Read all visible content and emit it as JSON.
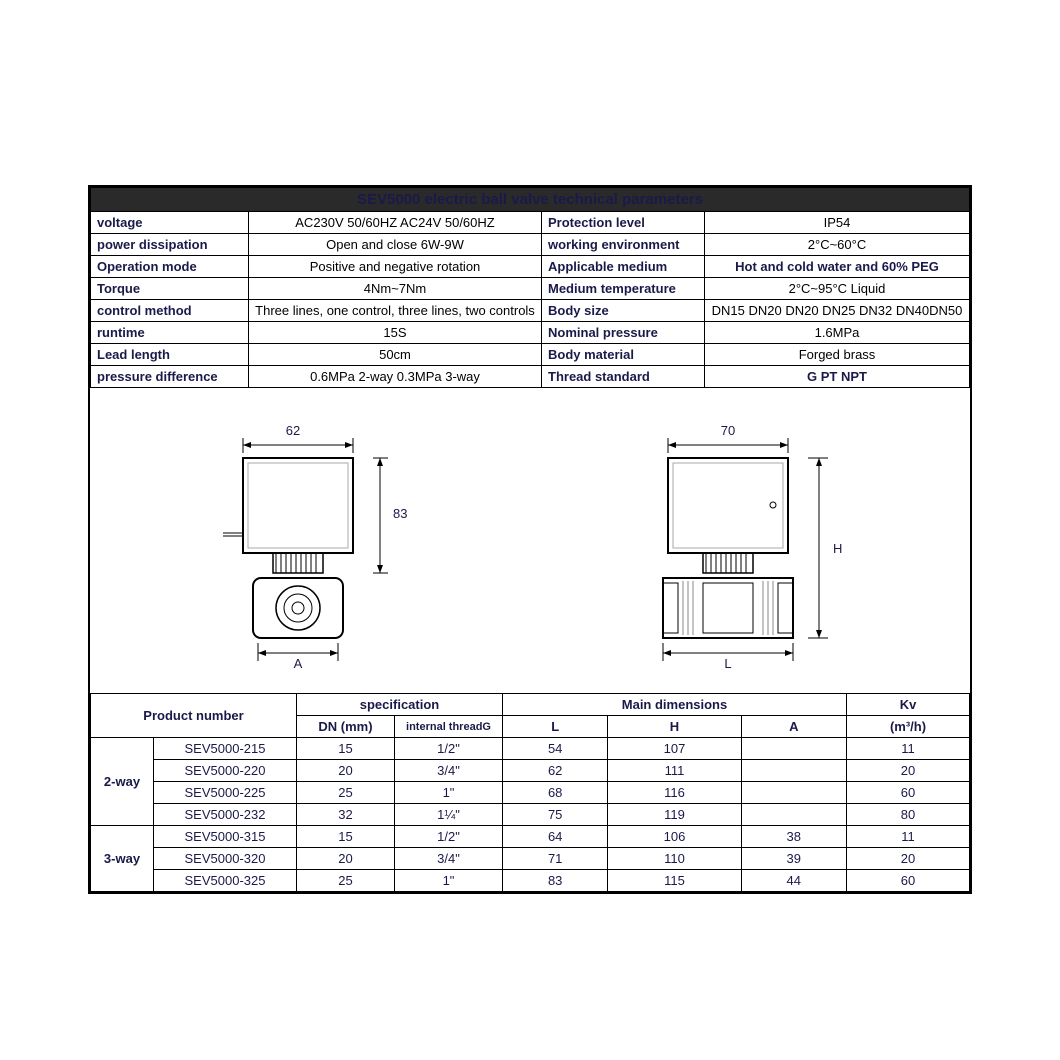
{
  "params": {
    "title": "SEV5000 electric ball valve technical parameters",
    "rows": [
      {
        "l1": "voltage",
        "v1": "AC230V 50/60HZ   AC24V 50/60HZ",
        "l2": "Protection level",
        "v2": "IP54"
      },
      {
        "l1": "power dissipation",
        "v1": "Open and close 6W-9W",
        "l2": "working environment",
        "v2": "2°C~60°C"
      },
      {
        "l1": "Operation mode",
        "v1": "Positive and negative rotation",
        "l2": "Applicable medium",
        "v2": "Hot and cold water and 60% PEG"
      },
      {
        "l1": "Torque",
        "v1": "4Nm~7Nm",
        "l2": "Medium temperature",
        "v2": "2°C~95°C  Liquid"
      },
      {
        "l1": "control method",
        "v1": "Three lines, one control, three lines, two controls",
        "l2": "Body size",
        "v2": "DN15 DN20 DN20 DN25 DN32 DN40DN50"
      },
      {
        "l1": "runtime",
        "v1": "15S",
        "l2": "Nominal pressure",
        "v2": "1.6MPa"
      },
      {
        "l1": "Lead length",
        "v1": "50cm",
        "l2": "Body material",
        "v2": "Forged brass"
      },
      {
        "l1": "pressure difference",
        "v1": "0.6MPa 2-way   0.3MPa 3-way",
        "l2": "Thread standard",
        "v2": "G PT NPT"
      }
    ]
  },
  "diagram": {
    "left": {
      "width_label": "62",
      "height_label": "83",
      "bottom_label": "A"
    },
    "right": {
      "width_label": "70",
      "height_label": "H",
      "bottom_label": "L"
    }
  },
  "dimensions": {
    "headers": {
      "product": "Product number",
      "spec": "specification",
      "main": "Main dimensions",
      "kv": "Kv",
      "kv_unit": "(m³/h)",
      "dn": "DN (mm)",
      "thread": "internal threadG",
      "L": "L",
      "H": "H",
      "A": "A"
    },
    "groups": [
      {
        "label": "2-way",
        "rows": [
          {
            "pn": "SEV5000-215",
            "dn": "15",
            "thread": "1/2\"",
            "L": "54",
            "H": "107",
            "A": "",
            "kv": "11"
          },
          {
            "pn": "SEV5000-220",
            "dn": "20",
            "thread": "3/4\"",
            "L": "62",
            "H": "111",
            "A": "",
            "kv": "20"
          },
          {
            "pn": "SEV5000-225",
            "dn": "25",
            "thread": "1\"",
            "L": "68",
            "H": "116",
            "A": "",
            "kv": "60"
          },
          {
            "pn": "SEV5000-232",
            "dn": "32",
            "thread": "1¼\"",
            "L": "75",
            "H": "119",
            "A": "",
            "kv": "80"
          }
        ]
      },
      {
        "label": "3-way",
        "rows": [
          {
            "pn": "SEV5000-315",
            "dn": "15",
            "thread": "1/2\"",
            "L": "64",
            "H": "106",
            "A": "38",
            "kv": "11"
          },
          {
            "pn": "SEV5000-320",
            "dn": "20",
            "thread": "3/4\"",
            "L": "71",
            "H": "110",
            "A": "39",
            "kv": "20"
          },
          {
            "pn": "SEV5000-325",
            "dn": "25",
            "thread": "1\"",
            "L": "83",
            "H": "115",
            "A": "44",
            "kv": "60"
          }
        ]
      }
    ]
  },
  "style": {
    "border_color": "#000000",
    "header_bg": "#2a2a2a",
    "header_fg": "#ffffff",
    "text_color": "#1a1a4a",
    "body_font_size": 13,
    "title_font_size": 15
  }
}
